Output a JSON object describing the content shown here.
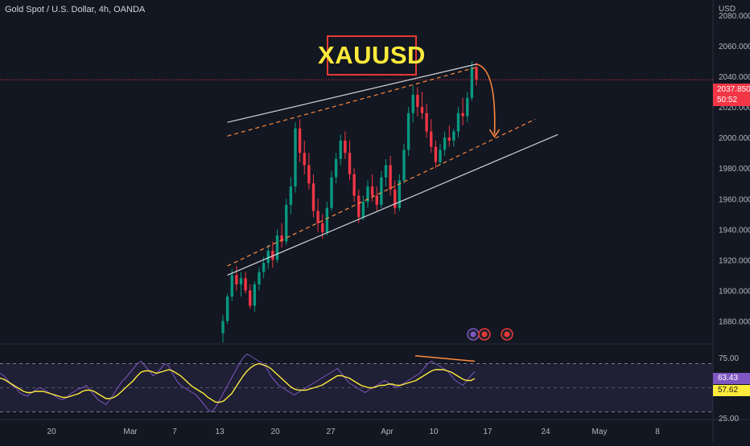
{
  "header": {
    "symbol_line": "Gold Spot / U.S. Dollar, 4h, OANDA",
    "currency": "USD"
  },
  "title": "XAUUSD",
  "price_badge": {
    "price": "2037.850",
    "countdown": "50:52",
    "color": "#f23645"
  },
  "rsi_badges": {
    "rsi_value": "63.43",
    "rsi_ma_value": "57.62"
  },
  "colors": {
    "background": "#131722",
    "up": "#089981",
    "down": "#f23645",
    "channel_dashed": "#ff8a3d",
    "channel_solid": "#d1d4dc",
    "rsi": "#7e57c2",
    "rsi_ma": "#ffeb3b",
    "rsi_band": "#7e57c2"
  },
  "icons": [
    "lightning-icon",
    "us-flag-event-icon",
    "us-flag-event-icon"
  ],
  "chart_data": [
    {
      "type": "candlestick",
      "title": "",
      "ylim": [
        1865,
        2090
      ],
      "y_ticks": [
        "2080.000",
        "2060.000",
        "2040.000",
        "2020.000",
        "2000.000",
        "1980.000",
        "1960.000",
        "1940.000",
        "1920.000",
        "1900.000",
        "1880.000"
      ],
      "x_ticks": [
        "20",
        "Mar",
        "7",
        "13",
        "20",
        "27",
        "Apr",
        "10",
        "17",
        "24",
        "May",
        "8"
      ],
      "current_price": 2037.85,
      "ohlc": [
        [
          1872,
          1884,
          1866,
          1880
        ],
        [
          1880,
          1898,
          1878,
          1896
        ],
        [
          1896,
          1914,
          1893,
          1910
        ],
        [
          1910,
          1916,
          1900,
          1904
        ],
        [
          1904,
          1912,
          1896,
          1908
        ],
        [
          1908,
          1912,
          1898,
          1900
        ],
        [
          1900,
          1904,
          1888,
          1890
        ],
        [
          1890,
          1906,
          1886,
          1904
        ],
        [
          1904,
          1915,
          1900,
          1912
        ],
        [
          1912,
          1922,
          1908,
          1918
        ],
        [
          1918,
          1930,
          1914,
          1926
        ],
        [
          1926,
          1932,
          1915,
          1920
        ],
        [
          1920,
          1940,
          1918,
          1936
        ],
        [
          1936,
          1944,
          1928,
          1932
        ],
        [
          1932,
          1960,
          1930,
          1956
        ],
        [
          1956,
          1974,
          1950,
          1968
        ],
        [
          1968,
          2010,
          1964,
          2006
        ],
        [
          2006,
          2012,
          1984,
          1990
        ],
        [
          1990,
          1998,
          1976,
          1982
        ],
        [
          1982,
          1990,
          1966,
          1970
        ],
        [
          1970,
          1976,
          1948,
          1952
        ],
        [
          1952,
          1960,
          1938,
          1944
        ],
        [
          1944,
          1950,
          1934,
          1938
        ],
        [
          1938,
          1958,
          1936,
          1954
        ],
        [
          1954,
          1978,
          1952,
          1974
        ],
        [
          1974,
          1990,
          1970,
          1986
        ],
        [
          1986,
          2002,
          1982,
          1998
        ],
        [
          1998,
          2004,
          1986,
          1990
        ],
        [
          1990,
          1998,
          1972,
          1976
        ],
        [
          1976,
          1980,
          1958,
          1962
        ],
        [
          1962,
          1966,
          1944,
          1948
        ],
        [
          1948,
          1962,
          1946,
          1958
        ],
        [
          1958,
          1972,
          1954,
          1968
        ],
        [
          1968,
          1976,
          1958,
          1962
        ],
        [
          1962,
          1968,
          1952,
          1956
        ],
        [
          1956,
          1978,
          1954,
          1974
        ],
        [
          1974,
          1986,
          1968,
          1982
        ],
        [
          1982,
          1988,
          1962,
          1966
        ],
        [
          1966,
          1972,
          1950,
          1954
        ],
        [
          1954,
          1976,
          1952,
          1972
        ],
        [
          1972,
          1996,
          1970,
          1992
        ],
        [
          1992,
          2020,
          1988,
          2016
        ],
        [
          2016,
          2034,
          2010,
          2028
        ],
        [
          2028,
          2033,
          2014,
          2020
        ],
        [
          2020,
          2030,
          2012,
          2016
        ],
        [
          2016,
          2022,
          2000,
          2004
        ],
        [
          2004,
          2012,
          1990,
          1994
        ],
        [
          1994,
          1998,
          1980,
          1984
        ],
        [
          1984,
          1996,
          1982,
          1992
        ],
        [
          1992,
          2004,
          1988,
          2000
        ],
        [
          2000,
          2008,
          1994,
          1998
        ],
        [
          1998,
          2006,
          1994,
          2004
        ],
        [
          2004,
          2020,
          2000,
          2016
        ],
        [
          2016,
          2026,
          2008,
          2014
        ],
        [
          2014,
          2030,
          2010,
          2026
        ],
        [
          2026,
          2050,
          2024,
          2046
        ],
        [
          2046,
          2049,
          2034,
          2038
        ]
      ],
      "channel": {
        "upper_solid": [
          [
            1,
            2010
          ],
          [
            56,
            2048
          ]
        ],
        "lower_solid": [
          [
            1,
            1910
          ],
          [
            74,
            2002
          ]
        ],
        "upper_dashed": [
          [
            1,
            2001
          ],
          [
            56,
            2046
          ]
        ],
        "lower_dashed": [
          [
            1,
            1916
          ],
          [
            69,
            2012
          ]
        ],
        "projection_arrow": [
          [
            56,
            2048
          ],
          [
            58,
            2040
          ],
          [
            60,
            2000
          ]
        ]
      }
    },
    {
      "type": "line",
      "title": "",
      "ylim": [
        25,
        85
      ],
      "y_ticks": [
        "75.00",
        "25.00"
      ],
      "bands": [
        70,
        50,
        30
      ],
      "series": [
        {
          "values": [
            62,
            60,
            56,
            52,
            50,
            46,
            44,
            43,
            46,
            48,
            50,
            49,
            47,
            45,
            43,
            41,
            40,
            42,
            45,
            47,
            49,
            50,
            52,
            48,
            44,
            40,
            38,
            36,
            40,
            45,
            50,
            55,
            58,
            62,
            66,
            70,
            72,
            68,
            64,
            60,
            62,
            66,
            70,
            68,
            62,
            56,
            52,
            50,
            48,
            46,
            44,
            40,
            36,
            32,
            30,
            34,
            40,
            46,
            52,
            58,
            64,
            70,
            75,
            78,
            76,
            74,
            72,
            70,
            66,
            60,
            56,
            52,
            50,
            48,
            46,
            44,
            46,
            48,
            50,
            52,
            54,
            56,
            58,
            60,
            62,
            64,
            66,
            62,
            58,
            54,
            52,
            50,
            48,
            46,
            48,
            50,
            52,
            54,
            56,
            54,
            52,
            50,
            52,
            54,
            56,
            58,
            60,
            62,
            66,
            70,
            72,
            70,
            68,
            66,
            64,
            60,
            56,
            54,
            52,
            56,
            60,
            63.43
          ]
        },
        {
          "values": [
            58,
            57,
            55,
            53,
            51,
            49,
            47,
            46,
            46,
            47,
            47,
            47,
            46,
            45,
            44,
            43,
            42,
            42,
            43,
            44,
            45,
            47,
            48,
            48,
            47,
            45,
            43,
            41,
            41,
            42,
            44,
            47,
            50,
            53,
            56,
            60,
            63,
            64,
            64,
            63,
            62,
            63,
            64,
            65,
            64,
            62,
            60,
            57,
            54,
            51,
            49,
            47,
            45,
            42,
            40,
            38,
            38,
            39,
            42,
            45,
            50,
            55,
            60,
            64,
            67,
            69,
            70,
            69,
            68,
            66,
            63,
            60,
            57,
            54,
            51,
            49,
            48,
            48,
            48,
            49,
            50,
            51,
            52,
            54,
            56,
            58,
            60,
            60,
            59,
            58,
            56,
            54,
            52,
            51,
            50,
            50,
            51,
            52,
            52,
            53,
            53,
            52,
            52,
            53,
            54,
            55,
            56,
            58,
            60,
            62,
            64,
            65,
            65,
            65,
            64,
            63,
            61,
            59,
            57,
            56,
            56,
            57.62
          ]
        }
      ],
      "annotation_line": {
        "color": "#ff8a3d"
      }
    }
  ]
}
